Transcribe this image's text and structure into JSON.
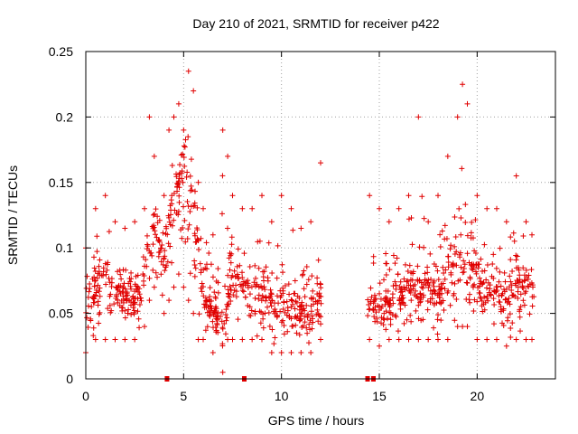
{
  "chart_data": {
    "type": "scatter",
    "title": "Day 210 of 2021, SRMTID for receiver p422",
    "xlabel": "GPS time / hours",
    "ylabel": "SRMTID / TECUs",
    "xlim": [
      0,
      24
    ],
    "ylim": [
      0,
      0.25
    ],
    "xticks": [
      0,
      5,
      10,
      15,
      20
    ],
    "xtick_labels": [
      "0",
      "5",
      "10",
      "15",
      "20"
    ],
    "yticks": [
      0,
      0.05,
      0.1,
      0.15,
      0.2,
      0.25
    ],
    "ytick_labels": [
      "0",
      "0.05",
      "0.1",
      "0.15",
      "0.2",
      "0.25"
    ],
    "grid": true,
    "marker": "+",
    "color": "#e00000",
    "series": [
      {
        "name": "SRMTID",
        "description": "dense scatter of ~3000 '+' markers; representative envelope sampled per 0.25 h",
        "x": [
          0.0,
          0.5,
          1.0,
          1.5,
          2.0,
          2.5,
          3.0,
          3.25,
          3.5,
          4.0,
          4.25,
          4.5,
          4.75,
          5.0,
          5.25,
          5.5,
          5.75,
          6.0,
          6.5,
          7.0,
          7.25,
          7.5,
          8.0,
          8.5,
          9.0,
          9.5,
          10.0,
          10.5,
          11.0,
          11.5,
          12.0,
          14.5,
          15.0,
          15.5,
          16.0,
          16.5,
          17.0,
          17.5,
          18.0,
          18.5,
          19.0,
          19.25,
          19.5,
          20.0,
          20.5,
          21.0,
          21.5,
          22.0,
          22.5,
          22.8
        ],
        "y": [
          0.065,
          0.075,
          0.08,
          0.07,
          0.065,
          0.06,
          0.075,
          0.11,
          0.12,
          0.09,
          0.12,
          0.14,
          0.15,
          0.16,
          0.15,
          0.13,
          0.1,
          0.07,
          0.05,
          0.045,
          0.06,
          0.08,
          0.07,
          0.075,
          0.065,
          0.06,
          0.055,
          0.06,
          0.05,
          0.045,
          0.07,
          0.06,
          0.055,
          0.06,
          0.065,
          0.07,
          0.075,
          0.07,
          0.065,
          0.08,
          0.09,
          0.1,
          0.085,
          0.08,
          0.07,
          0.065,
          0.06,
          0.075,
          0.075,
          0.07
        ],
        "ymin": [
          0.02,
          0.03,
          0.03,
          0.03,
          0.03,
          0.03,
          0.04,
          0.06,
          0.07,
          0.05,
          0.06,
          0.07,
          0.08,
          0.07,
          0.06,
          0.05,
          0.03,
          0.03,
          0.02,
          0.005,
          0.03,
          0.03,
          0.03,
          0.03,
          0.03,
          0.02,
          0.02,
          0.02,
          0.02,
          0.02,
          0.03,
          0.03,
          0.025,
          0.03,
          0.03,
          0.03,
          0.03,
          0.03,
          0.03,
          0.03,
          0.04,
          0.04,
          0.04,
          0.03,
          0.03,
          0.03,
          0.025,
          0.03,
          0.03,
          0.03
        ],
        "ymax": [
          0.1,
          0.13,
          0.14,
          0.12,
          0.115,
          0.12,
          0.13,
          0.2,
          0.17,
          0.14,
          0.19,
          0.2,
          0.21,
          0.19,
          0.235,
          0.22,
          0.15,
          0.13,
          0.11,
          0.19,
          0.17,
          0.14,
          0.13,
          0.13,
          0.14,
          0.12,
          0.14,
          0.13,
          0.115,
          0.12,
          0.165,
          0.14,
          0.13,
          0.12,
          0.13,
          0.14,
          0.2,
          0.12,
          0.14,
          0.17,
          0.2,
          0.225,
          0.21,
          0.14,
          0.13,
          0.13,
          0.12,
          0.155,
          0.12,
          0.11
        ]
      }
    ],
    "gap_markers_x": [
      4.15,
      8.1,
      14.4,
      14.7
    ]
  }
}
